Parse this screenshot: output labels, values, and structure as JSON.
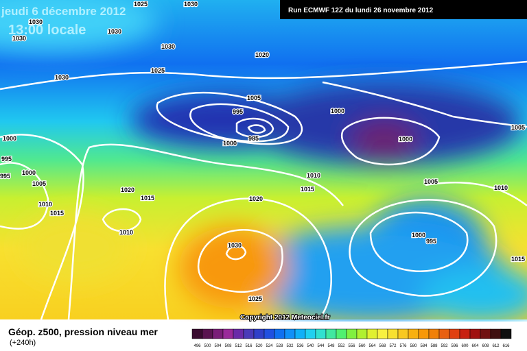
{
  "header": {
    "title": "jeudi 6 décembre 2012",
    "time": "13:00 locale",
    "run": "Run ECMWF 12Z du lundi 26 novembre 2012"
  },
  "isobar_labels": [
    "1025",
    "1030",
    "1030",
    "1030",
    "1030",
    "1030",
    "1020",
    "1025",
    "1030",
    "1005",
    "995",
    "1000",
    "985",
    "1000",
    "1000",
    "1005",
    "1000",
    "995",
    "1000",
    "995",
    "1005",
    "1010",
    "1020",
    "1015",
    "1005",
    "1010",
    "1015",
    "1020",
    "1010",
    "1015",
    "1010",
    "1000",
    "995",
    "1030",
    "1015",
    "1025"
  ],
  "copyright": "Copyright 2012 Meteociel.fr",
  "footer": {
    "caption": "Géop. z500, pression niveau mer",
    "lead": "(+240h)"
  },
  "scale": {
    "labels": [
      496,
      500,
      504,
      508,
      512,
      516,
      520,
      524,
      528,
      532,
      536,
      540,
      544,
      548,
      552,
      556,
      560,
      564,
      568,
      572,
      576,
      580,
      584,
      588,
      592,
      596,
      600,
      604,
      608,
      612,
      616
    ],
    "colors": [
      "#3a0c30",
      "#5a1450",
      "#7a1e78",
      "#9a2a9a",
      "#6a2aa8",
      "#4a3ab8",
      "#3040c8",
      "#2050e0",
      "#1070f0",
      "#1090f8",
      "#10b0f8",
      "#20d0f0",
      "#30e0d0",
      "#40e8a0",
      "#50f070",
      "#80f040",
      "#b0f030",
      "#e0f030",
      "#f8f040",
      "#f8e030",
      "#f8c820",
      "#f8b010",
      "#f89808",
      "#f08008",
      "#e86010",
      "#e04010",
      "#c82010",
      "#a01010",
      "#701010",
      "#401010",
      "#101010"
    ]
  }
}
